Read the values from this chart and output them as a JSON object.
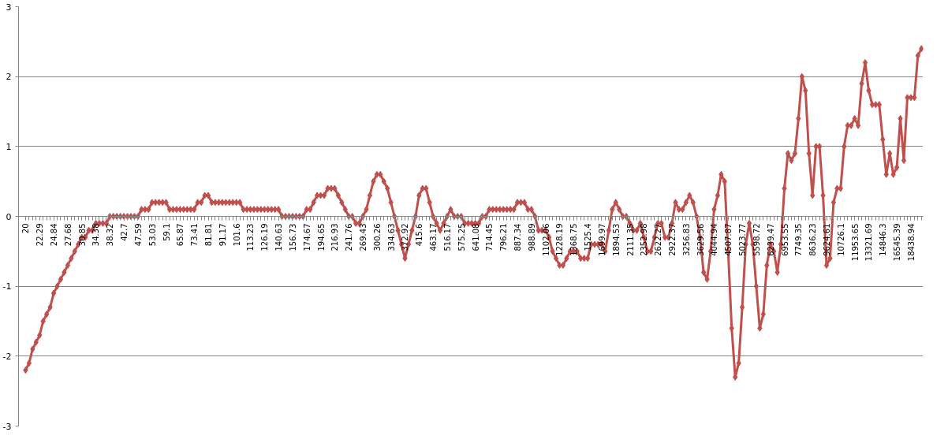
{
  "chart_data": {
    "type": "line",
    "categories": [
      "20",
      null,
      null,
      null,
      "22.29",
      null,
      null,
      null,
      "24.84",
      null,
      null,
      null,
      "27.68",
      null,
      null,
      null,
      "30.85",
      null,
      null,
      null,
      "34.38",
      null,
      null,
      null,
      "38.32",
      null,
      null,
      null,
      "42.7",
      null,
      null,
      null,
      "47.59",
      null,
      null,
      null,
      "53.03",
      null,
      null,
      null,
      "59.1",
      null,
      null,
      null,
      "65.87",
      null,
      null,
      null,
      "73.41",
      null,
      null,
      null,
      "81.81",
      null,
      null,
      null,
      "91.17",
      null,
      null,
      null,
      "101.6",
      null,
      null,
      null,
      "113.23",
      null,
      null,
      null,
      "126.19",
      null,
      null,
      null,
      "140.63",
      null,
      null,
      null,
      "156.73",
      null,
      null,
      null,
      "174.67",
      null,
      null,
      null,
      "194.65",
      null,
      null,
      null,
      "216.93",
      null,
      null,
      null,
      "241.76",
      null,
      null,
      null,
      "269.43",
      null,
      null,
      null,
      "300.26",
      null,
      null,
      null,
      "334.63",
      null,
      null,
      null,
      "372.92",
      null,
      null,
      null,
      "415.6",
      null,
      null,
      null,
      "463.17",
      null,
      null,
      null,
      "516.17",
      null,
      null,
      null,
      "575.25",
      null,
      null,
      null,
      "641.08",
      null,
      null,
      null,
      "714.45",
      null,
      null,
      null,
      "796.21",
      null,
      null,
      null,
      "887.34",
      null,
      null,
      null,
      "988.89",
      null,
      null,
      null,
      "1102.06",
      null,
      null,
      null,
      "1228.19",
      null,
      null,
      null,
      "1368.75",
      null,
      null,
      null,
      "1525.4",
      null,
      null,
      null,
      "1699.97",
      null,
      null,
      null,
      "1894.53",
      null,
      null,
      null,
      "2111.35",
      null,
      null,
      null,
      "2352.98",
      null,
      null,
      null,
      "2622.27",
      null,
      null,
      null,
      "2922.37",
      null,
      null,
      null,
      "3256.83",
      null,
      null,
      null,
      "3629.56",
      null,
      null,
      null,
      "4044.94",
      null,
      null,
      null,
      "4507.87",
      null,
      null,
      null,
      "5023.77",
      null,
      null,
      null,
      "5598.72",
      null,
      null,
      null,
      "6239.47",
      null,
      null,
      null,
      "6953.55",
      null,
      null,
      null,
      "7749.35",
      null,
      null,
      null,
      "8636.23",
      null,
      null,
      null,
      "9624.61",
      null,
      null,
      null,
      "10726.1",
      null,
      null,
      null,
      "11953.65",
      null,
      null,
      null,
      "13321.69",
      null,
      null,
      null,
      "14846.3",
      null,
      null,
      null,
      "16545.39",
      null,
      null,
      null,
      "18438.94",
      null,
      null,
      null
    ],
    "series": [
      {
        "color": "#c0504d",
        "values": [
          -2.2,
          -2.1,
          -1.9,
          -1.8,
          -1.7,
          -1.5,
          -1.4,
          -1.3,
          -1.1,
          -1.0,
          -0.9,
          -0.8,
          -0.7,
          -0.6,
          -0.5,
          -0.4,
          -0.3,
          -0.3,
          -0.2,
          -0.2,
          -0.1,
          -0.1,
          -0.1,
          -0.1,
          0,
          0,
          0,
          0,
          0,
          0,
          0,
          0,
          0,
          0.1,
          0.1,
          0.1,
          0.2,
          0.2,
          0.2,
          0.2,
          0.2,
          0.1,
          0.1,
          0.1,
          0.1,
          0.1,
          0.1,
          0.1,
          0.1,
          0.2,
          0.2,
          0.3,
          0.3,
          0.2,
          0.2,
          0.2,
          0.2,
          0.2,
          0.2,
          0.2,
          0.2,
          0.2,
          0.1,
          0.1,
          0.1,
          0.1,
          0.1,
          0.1,
          0.1,
          0.1,
          0.1,
          0.1,
          0.1,
          0,
          0,
          0,
          0,
          0,
          0,
          0,
          0.1,
          0.1,
          0.2,
          0.3,
          0.3,
          0.3,
          0.4,
          0.4,
          0.4,
          0.3,
          0.2,
          0.1,
          0,
          0,
          -0.1,
          -0.1,
          0,
          0.1,
          0.3,
          0.5,
          0.6,
          0.6,
          0.5,
          0.4,
          0.2,
          0,
          -0.2,
          -0.4,
          -0.6,
          -0.4,
          -0.2,
          0,
          0.3,
          0.4,
          0.4,
          0.2,
          0,
          -0.1,
          -0.2,
          -0.1,
          0,
          0.1,
          0,
          0,
          0,
          -0.1,
          -0.1,
          -0.1,
          -0.1,
          -0.1,
          0,
          0,
          0.1,
          0.1,
          0.1,
          0.1,
          0.1,
          0.1,
          0.1,
          0.1,
          0.2,
          0.2,
          0.2,
          0.1,
          0.1,
          0,
          -0.2,
          -0.2,
          -0.2,
          -0.3,
          -0.5,
          -0.6,
          -0.7,
          -0.7,
          -0.6,
          -0.5,
          -0.5,
          -0.5,
          -0.6,
          -0.6,
          -0.6,
          -0.4,
          -0.4,
          -0.4,
          -0.4,
          -0.5,
          -0.2,
          0.1,
          0.2,
          0.1,
          0,
          0,
          -0.1,
          -0.2,
          -0.2,
          -0.1,
          -0.3,
          -0.5,
          -0.5,
          -0.3,
          -0.1,
          -0.1,
          -0.3,
          -0.3,
          -0.1,
          0.2,
          0.1,
          0.1,
          0.2,
          0.3,
          0.2,
          0,
          -0.3,
          -0.8,
          -0.9,
          -0.5,
          0.1,
          0.3,
          0.6,
          0.5,
          -0.5,
          -1.6,
          -2.3,
          -2.1,
          -1.3,
          -0.4,
          -0.1,
          -0.4,
          -1.0,
          -1.6,
          -1.4,
          -0.7,
          -0.4,
          -0.5,
          -0.8,
          -0.4,
          0.4,
          0.9,
          0.8,
          0.9,
          1.4,
          2.0,
          1.8,
          0.9,
          0.3,
          1.0,
          1.0,
          0.3,
          -0.7,
          -0.6,
          0.2,
          0.4,
          0.4,
          1.0,
          1.3,
          1.3,
          1.4,
          1.3,
          1.9,
          2.2,
          1.8,
          1.6,
          1.6,
          1.6,
          1.1,
          0.6,
          0.9,
          0.6,
          0.7,
          1.4,
          0.8,
          1.7,
          1.7,
          1.7,
          2.3,
          2.4
        ]
      }
    ],
    "ylim": [
      -3,
      3
    ],
    "yticks": [
      -3,
      -2,
      -1,
      0,
      1,
      2,
      3
    ],
    "grid": "y",
    "marker": "diamond",
    "line_style": "solid"
  }
}
